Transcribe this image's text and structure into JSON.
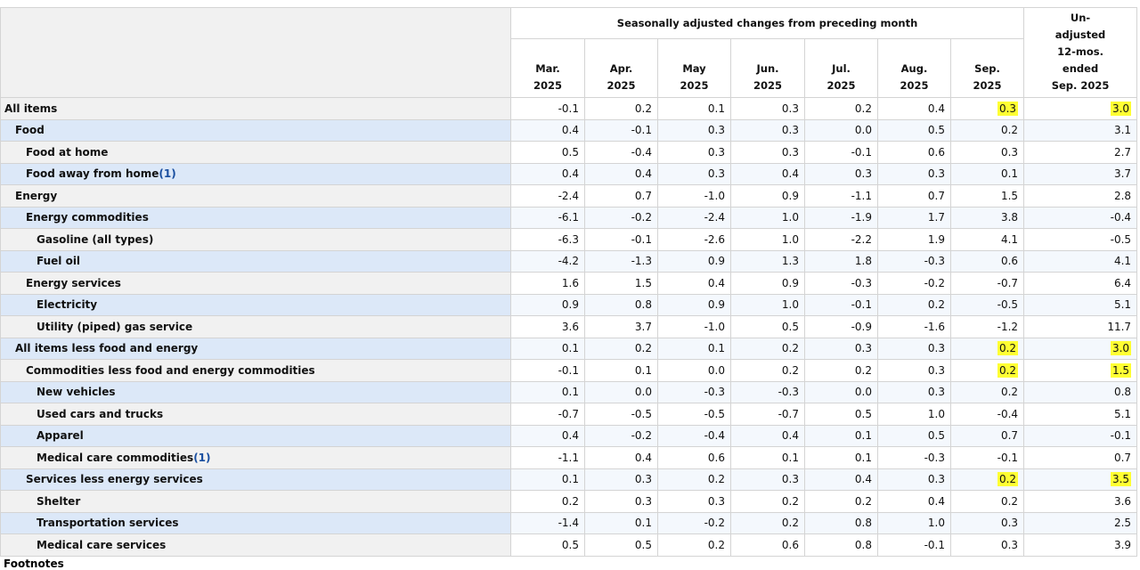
{
  "table": {
    "group_header": "Seasonally adjusted changes from preceding month",
    "columns": [
      [
        "Mar.",
        "2025"
      ],
      [
        "Apr.",
        "2025"
      ],
      [
        "May",
        "2025"
      ],
      [
        "Jun.",
        "2025"
      ],
      [
        "Jul.",
        "2025"
      ],
      [
        "Aug.",
        "2025"
      ],
      [
        "Sep.",
        "2025"
      ]
    ],
    "last_column": [
      "Un-",
      "adjusted",
      "12-mos.",
      "ended",
      "Sep. 2025"
    ],
    "rows": [
      {
        "label": "All items",
        "level": 0,
        "highlight": true,
        "values": [
          "-0.1",
          "0.2",
          "0.1",
          "0.3",
          "0.2",
          "0.4",
          "0.3",
          "3.0"
        ]
      },
      {
        "label": "Food",
        "level": 1,
        "values": [
          "0.4",
          "-0.1",
          "0.3",
          "0.3",
          "0.0",
          "0.5",
          "0.2",
          "3.1"
        ]
      },
      {
        "label": "Food at home",
        "level": 2,
        "values": [
          "0.5",
          "-0.4",
          "0.3",
          "0.3",
          "-0.1",
          "0.6",
          "0.3",
          "2.7"
        ]
      },
      {
        "label": "Food away from home",
        "footnote": "(1)",
        "level": 2,
        "values": [
          "0.4",
          "0.4",
          "0.3",
          "0.4",
          "0.3",
          "0.3",
          "0.1",
          "3.7"
        ]
      },
      {
        "label": "Energy",
        "level": 1,
        "values": [
          "-2.4",
          "0.7",
          "-1.0",
          "0.9",
          "-1.1",
          "0.7",
          "1.5",
          "2.8"
        ]
      },
      {
        "label": "Energy commodities",
        "level": 2,
        "values": [
          "-6.1",
          "-0.2",
          "-2.4",
          "1.0",
          "-1.9",
          "1.7",
          "3.8",
          "-0.4"
        ]
      },
      {
        "label": "Gasoline (all types)",
        "level": 3,
        "values": [
          "-6.3",
          "-0.1",
          "-2.6",
          "1.0",
          "-2.2",
          "1.9",
          "4.1",
          "-0.5"
        ]
      },
      {
        "label": "Fuel oil",
        "level": 3,
        "values": [
          "-4.2",
          "-1.3",
          "0.9",
          "1.3",
          "1.8",
          "-0.3",
          "0.6",
          "4.1"
        ]
      },
      {
        "label": "Energy services",
        "level": 2,
        "values": [
          "1.6",
          "1.5",
          "0.4",
          "0.9",
          "-0.3",
          "-0.2",
          "-0.7",
          "6.4"
        ]
      },
      {
        "label": "Electricity",
        "level": 3,
        "values": [
          "0.9",
          "0.8",
          "0.9",
          "1.0",
          "-0.1",
          "0.2",
          "-0.5",
          "5.1"
        ]
      },
      {
        "label": "Utility (piped) gas service",
        "level": 3,
        "values": [
          "3.6",
          "3.7",
          "-1.0",
          "0.5",
          "-0.9",
          "-1.6",
          "-1.2",
          "11.7"
        ]
      },
      {
        "label": "All items less food and energy",
        "level": 1,
        "highlight": true,
        "values": [
          "0.1",
          "0.2",
          "0.1",
          "0.2",
          "0.3",
          "0.3",
          "0.2",
          "3.0"
        ]
      },
      {
        "label": "Commodities less food and energy commodities",
        "level": 2,
        "highlight": true,
        "values": [
          "-0.1",
          "0.1",
          "0.0",
          "0.2",
          "0.2",
          "0.3",
          "0.2",
          "1.5"
        ]
      },
      {
        "label": "New vehicles",
        "level": 3,
        "values": [
          "0.1",
          "0.0",
          "-0.3",
          "-0.3",
          "0.0",
          "0.3",
          "0.2",
          "0.8"
        ]
      },
      {
        "label": "Used cars and trucks",
        "level": 3,
        "values": [
          "-0.7",
          "-0.5",
          "-0.5",
          "-0.7",
          "0.5",
          "1.0",
          "-0.4",
          "5.1"
        ]
      },
      {
        "label": "Apparel",
        "level": 3,
        "values": [
          "0.4",
          "-0.2",
          "-0.4",
          "0.4",
          "0.1",
          "0.5",
          "0.7",
          "-0.1"
        ]
      },
      {
        "label": "Medical care commodities",
        "footnote": "(1)",
        "level": 3,
        "values": [
          "-1.1",
          "0.4",
          "0.6",
          "0.1",
          "0.1",
          "-0.3",
          "-0.1",
          "0.7"
        ]
      },
      {
        "label": "Services less energy services",
        "level": 2,
        "highlight": true,
        "values": [
          "0.1",
          "0.3",
          "0.2",
          "0.3",
          "0.4",
          "0.3",
          "0.2",
          "3.5"
        ]
      },
      {
        "label": "Shelter",
        "level": 3,
        "values": [
          "0.2",
          "0.3",
          "0.3",
          "0.2",
          "0.2",
          "0.4",
          "0.2",
          "3.6"
        ]
      },
      {
        "label": "Transportation services",
        "level": 3,
        "values": [
          "-1.4",
          "0.1",
          "-0.2",
          "0.2",
          "0.8",
          "1.0",
          "0.3",
          "2.5"
        ]
      },
      {
        "label": "Medical care services",
        "level": 3,
        "values": [
          "0.5",
          "0.5",
          "0.2",
          "0.6",
          "0.8",
          "-0.1",
          "0.3",
          "3.9"
        ]
      }
    ],
    "footnotes_title": "Footnotes"
  }
}
